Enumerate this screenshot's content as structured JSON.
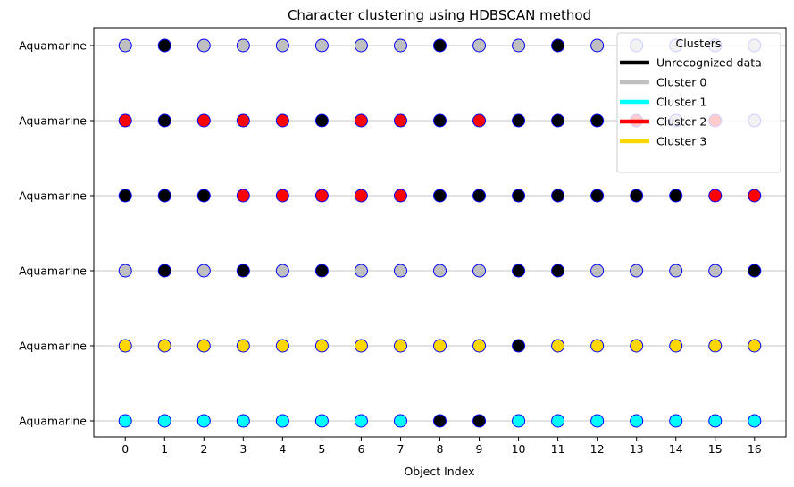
{
  "chart_data": {
    "type": "scatter",
    "title": "Character clustering using HDBSCAN method",
    "xlabel": "Object Index",
    "ylabel": "",
    "x": [
      0,
      1,
      2,
      3,
      4,
      5,
      6,
      7,
      8,
      9,
      10,
      11,
      12,
      13,
      14,
      15,
      16
    ],
    "xlim": [
      -0.8,
      16.8
    ],
    "y_tick_labels": [
      "Aquamarine",
      "Aquamarine",
      "Aquamarine",
      "Aquamarine",
      "Aquamarine",
      "Aquamarine"
    ],
    "grid": "horizontal",
    "legend": {
      "title": "Clusters",
      "placement": "top-right",
      "entries": [
        {
          "label": "Unrecognized data",
          "color": "#000000"
        },
        {
          "label": "Cluster 0",
          "color": "#bfbfbf"
        },
        {
          "label": "Cluster 1",
          "color": "#00ffff"
        },
        {
          "label": "Cluster 2",
          "color": "#ff0000"
        },
        {
          "label": "Cluster 3",
          "color": "#ffd700"
        }
      ]
    },
    "marker_edge_color": "#0000ff",
    "cluster_colors": {
      "-1": "#000000",
      "0": "#bfbfbf",
      "1": "#00ffff",
      "2": "#ff0000",
      "3": "#ffd700"
    },
    "rows": [
      {
        "clusters": [
          0,
          -1,
          0,
          0,
          0,
          0,
          0,
          0,
          -1,
          0,
          0,
          -1,
          0,
          0,
          0,
          0,
          0
        ]
      },
      {
        "clusters": [
          2,
          -1,
          2,
          2,
          2,
          -1,
          2,
          2,
          -1,
          2,
          -1,
          -1,
          -1,
          2,
          0,
          2,
          0
        ]
      },
      {
        "clusters": [
          -1,
          -1,
          -1,
          2,
          2,
          2,
          2,
          2,
          -1,
          -1,
          -1,
          -1,
          -1,
          -1,
          -1,
          2,
          2
        ]
      },
      {
        "clusters": [
          0,
          -1,
          0,
          -1,
          0,
          -1,
          0,
          0,
          0,
          0,
          -1,
          -1,
          0,
          0,
          0,
          0,
          -1
        ]
      },
      {
        "clusters": [
          3,
          3,
          3,
          3,
          3,
          3,
          3,
          3,
          3,
          3,
          -1,
          3,
          3,
          3,
          3,
          3,
          3
        ]
      },
      {
        "clusters": [
          1,
          1,
          1,
          1,
          1,
          1,
          1,
          1,
          -1,
          -1,
          1,
          1,
          1,
          1,
          1,
          1,
          1
        ]
      }
    ]
  }
}
